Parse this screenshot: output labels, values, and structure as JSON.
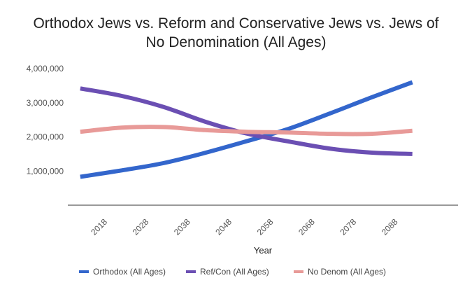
{
  "chart_data": {
    "type": "line",
    "title_lines": [
      "Orthodox Jews vs. Reform and Conservative Jews vs. Jews of",
      "No Denomination (All Ages)"
    ],
    "xlabel": "Year",
    "ylabel": "",
    "x_ticks": [
      "2018",
      "2028",
      "2038",
      "2048",
      "2058",
      "2068",
      "2078",
      "2088"
    ],
    "y_ticks": [
      "1,000,000",
      "2,000,000",
      "3,000,000",
      "4,000,000"
    ],
    "xlim": [
      2010,
      2104
    ],
    "ylim": [
      0,
      4000000
    ],
    "grid": false,
    "legend_position": "bottom",
    "x": [
      2013,
      2023,
      2033,
      2043,
      2053,
      2063,
      2073,
      2083,
      2093
    ],
    "series": [
      {
        "name": "Orthodox (All Ages)",
        "color": "#3366cc",
        "values": [
          830000,
          1020000,
          1230000,
          1530000,
          1870000,
          2230000,
          2680000,
          3150000,
          3600000
        ]
      },
      {
        "name": "Ref/Con (All Ages)",
        "color": "#6b4fb3",
        "values": [
          3420000,
          3200000,
          2880000,
          2450000,
          2100000,
          1870000,
          1660000,
          1540000,
          1500000
        ]
      },
      {
        "name": "No Denom (All Ages)",
        "color": "#e89a98",
        "values": [
          2150000,
          2270000,
          2290000,
          2200000,
          2150000,
          2130000,
          2090000,
          2090000,
          2180000
        ]
      }
    ]
  }
}
